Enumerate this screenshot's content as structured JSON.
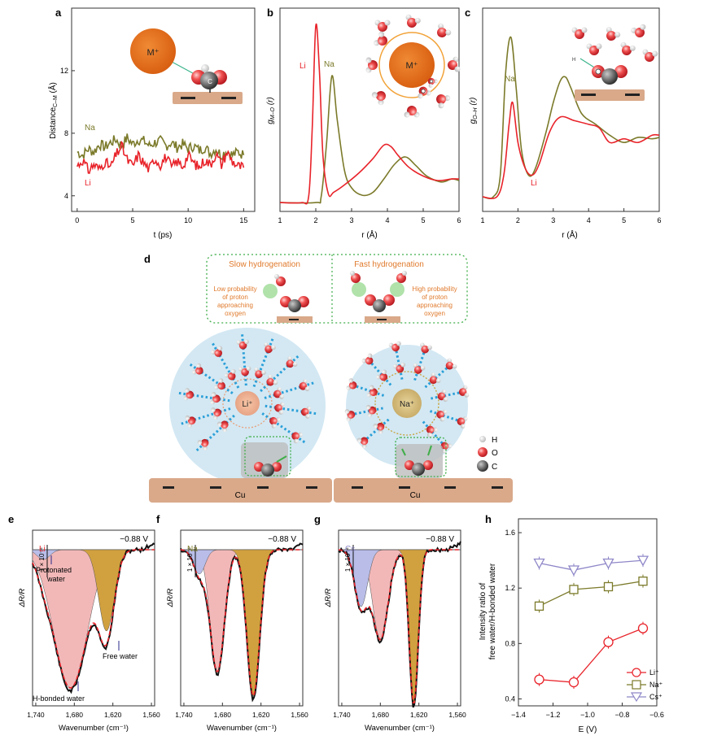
{
  "colors": {
    "li": "#e8232a",
    "na": "#7b7a2a",
    "cs": "#8e87c8",
    "hbonded_fill": "#f2b8b8",
    "free_fill": "#d1a13f",
    "protonated_fill": "#b9bde8",
    "substrate": "#d9a98a",
    "sphere": "#d3e8f3",
    "oxygen": "#e8393f",
    "accent_orange": "#e07a2c",
    "green_dotted": "#3fae49"
  },
  "panels": {
    "a": {
      "label": "a",
      "xlabel": "t (ps)",
      "ylabel": "Distance",
      "ylabel_sub": "C–M",
      "ylabel_unit": "(Å)",
      "legend_na": "Na",
      "legend_li": "Li",
      "ion": "M⁺",
      "atom": "C"
    },
    "b": {
      "label": "b",
      "xlabel": "r (Å)",
      "ylabel": "g",
      "ylabel_sub": "M–O",
      "ylabel_tail": "(r)",
      "legend_li": "Li",
      "legend_na": "Na",
      "ion": "M⁺"
    },
    "c": {
      "label": "c",
      "xlabel": "r (Å)",
      "ylabel": "g",
      "ylabel_sub": "O–H",
      "ylabel_tail": "(r)",
      "legend_na": "Na",
      "legend_li": "Li",
      "h": "H"
    },
    "d": {
      "label": "d",
      "slow_title": "Slow hydrogenation",
      "slow_text": [
        "Low probability",
        "of proton",
        "approaching",
        "oxygen"
      ],
      "fast_title": "Fast hydrogenation",
      "fast_text": [
        "High probability",
        "of proton",
        "approaching",
        "oxygen"
      ],
      "li_ion": "Li⁺",
      "na_ion": "Na⁺",
      "substrate": "Cu",
      "legend": [
        "H",
        "O",
        "C"
      ]
    },
    "e": {
      "label": "e",
      "ion": "Li",
      "voltage": "−0.88 V",
      "protonated": [
        "Protonated",
        "water"
      ],
      "free": "Free water",
      "hbonded": "H-bonded water",
      "scale": "1 × 10⁻⁴",
      "ylabel": "ΔR/R",
      "xlabel": "Wavenumber (cm⁻¹)"
    },
    "f": {
      "label": "f",
      "ion": "Na",
      "voltage": "−0.88 V",
      "scale": "1 × 10⁻⁴",
      "ylabel": "ΔR/R",
      "xlabel": "Wavenumber (cm⁻¹)"
    },
    "g": {
      "label": "g",
      "ion": "Cs",
      "voltage": "−0.88 V",
      "scale": "1 × 10⁻⁴",
      "ylabel": "ΔR/R",
      "xlabel": "Wavenumber (cm⁻¹)"
    },
    "h": {
      "label": "h",
      "xlabel": "E (V)",
      "ylabel_1": "Intensity ratio of",
      "ylabel_2": "free water/H-bonded water",
      "legend": [
        "Li⁺",
        "Na⁺",
        "Cs⁺"
      ]
    }
  },
  "chart_data": [
    {
      "panel": "a",
      "type": "line",
      "xlabel": "t (ps)",
      "ylabel": "Distance C–M (Å)",
      "xlim": [
        -0.5,
        16
      ],
      "ylim": [
        3,
        16
      ],
      "xticks": [
        0,
        5,
        10,
        15
      ],
      "yticks": [
        4,
        8,
        12
      ],
      "series": [
        {
          "name": "Na",
          "x": [
            0,
            0.5,
            1,
            1.5,
            2,
            2.5,
            3,
            3.5,
            4,
            4.5,
            5,
            5.5,
            6,
            6.5,
            7,
            7.5,
            8,
            8.5,
            9,
            9.5,
            10,
            10.5,
            11,
            11.5,
            12,
            12.5,
            13,
            13.5,
            14,
            14.5,
            15
          ],
          "y": [
            6.8,
            6.6,
            7.0,
            6.8,
            7.3,
            7.1,
            7.4,
            7.6,
            7.2,
            7.7,
            7.3,
            7.6,
            7.5,
            7.2,
            7.4,
            7.5,
            7.2,
            7.4,
            7.1,
            7.3,
            7.0,
            7.2,
            6.9,
            7.1,
            6.7,
            7.0,
            6.6,
            6.9,
            6.6,
            6.8,
            6.6
          ]
        },
        {
          "name": "Li",
          "x": [
            0,
            0.5,
            1,
            1.5,
            2,
            2.5,
            3,
            3.5,
            4,
            4.5,
            5,
            5.5,
            6,
            6.5,
            7,
            7.5,
            8,
            8.5,
            9,
            9.5,
            10,
            10.5,
            11,
            11.5,
            12,
            12.5,
            13,
            13.5,
            14,
            14.5,
            15
          ],
          "y": [
            5.9,
            6.3,
            5.6,
            6.0,
            5.7,
            6.2,
            5.8,
            6.6,
            7.2,
            6.3,
            5.9,
            6.6,
            6.1,
            5.7,
            6.4,
            6.0,
            6.5,
            5.8,
            6.2,
            5.9,
            6.6,
            6.1,
            5.8,
            6.3,
            6.0,
            6.7,
            6.0,
            6.8,
            6.2,
            5.9,
            5.8
          ]
        }
      ]
    },
    {
      "panel": "b",
      "type": "line",
      "xlabel": "r (Å)",
      "ylabel": "g M–O (r)",
      "xlim": [
        1,
        6
      ],
      "ylim": [
        -0.3,
        6.6
      ],
      "xticks": [
        1,
        2,
        3,
        4,
        5,
        6
      ],
      "series": [
        {
          "name": "Li",
          "x": [
            1,
            1.6,
            1.8,
            1.9,
            2.0,
            2.1,
            2.2,
            2.35,
            2.5,
            2.8,
            3.2,
            3.6,
            3.9,
            4.1,
            4.3,
            4.6,
            5.0,
            5.4,
            5.8,
            6.0
          ],
          "y": [
            0,
            0,
            0.2,
            2.5,
            6.0,
            4.5,
            1.6,
            0.3,
            0.35,
            0.6,
            1.0,
            1.5,
            1.95,
            1.9,
            1.6,
            1.2,
            0.9,
            0.75,
            0.8,
            0.8
          ]
        },
        {
          "name": "Na",
          "x": [
            1,
            2.0,
            2.15,
            2.3,
            2.45,
            2.6,
            2.8,
            3.0,
            3.3,
            3.6,
            3.9,
            4.2,
            4.5,
            4.8,
            5.1,
            5.5,
            5.8,
            6.0
          ],
          "y": [
            0,
            0,
            0.2,
            2.0,
            4.3,
            2.8,
            1.1,
            0.5,
            0.25,
            0.35,
            0.8,
            1.3,
            1.55,
            1.25,
            0.9,
            0.7,
            0.8,
            0.75
          ]
        }
      ]
    },
    {
      "panel": "c",
      "type": "line",
      "xlabel": "r (Å)",
      "ylabel": "g O–H (r)",
      "xlim": [
        1,
        6
      ],
      "ylim": [
        -0.2,
        2.6
      ],
      "xticks": [
        1,
        2,
        3,
        4,
        5,
        6
      ],
      "series": [
        {
          "name": "Na",
          "x": [
            1,
            1.3,
            1.5,
            1.65,
            1.8,
            1.95,
            2.1,
            2.3,
            2.5,
            2.8,
            3.0,
            3.2,
            3.35,
            3.5,
            3.8,
            4.2,
            4.6,
            5.0,
            5.4,
            5.8,
            6.0
          ],
          "y": [
            0,
            0,
            0.3,
            1.7,
            2.2,
            1.5,
            0.65,
            0.3,
            0.4,
            0.9,
            1.3,
            1.6,
            1.65,
            1.5,
            1.15,
            1.0,
            0.85,
            0.75,
            0.82,
            0.8,
            0.82
          ]
        },
        {
          "name": "Li",
          "x": [
            1,
            1.4,
            1.6,
            1.75,
            1.85,
            2.0,
            2.2,
            2.4,
            2.6,
            2.9,
            3.2,
            3.6,
            4.0,
            4.3,
            4.6,
            5.0,
            5.4,
            5.8,
            6.0
          ],
          "y": [
            0,
            0,
            0.3,
            1.0,
            1.3,
            0.75,
            0.4,
            0.3,
            0.45,
            0.9,
            1.1,
            1.05,
            1.0,
            0.95,
            0.75,
            0.8,
            0.75,
            0.85,
            0.85
          ]
        }
      ]
    },
    {
      "panel": "e",
      "type": "area",
      "xlabel": "Wavenumber (cm⁻¹)",
      "ylabel": "ΔR/R",
      "xlim": [
        1745,
        1555
      ],
      "xticks": [
        1740,
        1680,
        1620,
        1560
      ]
    },
    {
      "panel": "f",
      "type": "area",
      "xlabel": "Wavenumber (cm⁻¹)",
      "ylabel": "ΔR/R",
      "xlim": [
        1745,
        1555
      ],
      "xticks": [
        1740,
        1680,
        1620,
        1560
      ]
    },
    {
      "panel": "g",
      "type": "area",
      "xlabel": "Wavenumber (cm⁻¹)",
      "ylabel": "ΔR/R",
      "xlim": [
        1745,
        1555
      ],
      "xticks": [
        1740,
        1680,
        1620,
        1560
      ]
    },
    {
      "panel": "h",
      "type": "scatter",
      "xlabel": "E (V)",
      "ylabel": "Intensity ratio of free water/H-bonded water",
      "xlim": [
        -1.4,
        -0.6
      ],
      "ylim": [
        0.35,
        1.7
      ],
      "xticks": [
        -1.4,
        -1.2,
        -1.0,
        -0.8,
        -0.6
      ],
      "yticks": [
        0.4,
        0.8,
        1.2,
        1.6
      ],
      "legend_position": "bottom-right",
      "series": [
        {
          "name": "Li⁺",
          "x": [
            -1.28,
            -1.08,
            -0.88,
            -0.68
          ],
          "y": [
            0.54,
            0.52,
            0.81,
            0.91
          ]
        },
        {
          "name": "Na⁺",
          "x": [
            -1.28,
            -1.08,
            -0.88,
            -0.68
          ],
          "y": [
            1.07,
            1.19,
            1.21,
            1.25
          ]
        },
        {
          "name": "Cs⁺",
          "x": [
            -1.28,
            -1.08,
            -0.88,
            -0.68
          ],
          "y": [
            1.38,
            1.33,
            1.38,
            1.4
          ]
        }
      ]
    }
  ]
}
